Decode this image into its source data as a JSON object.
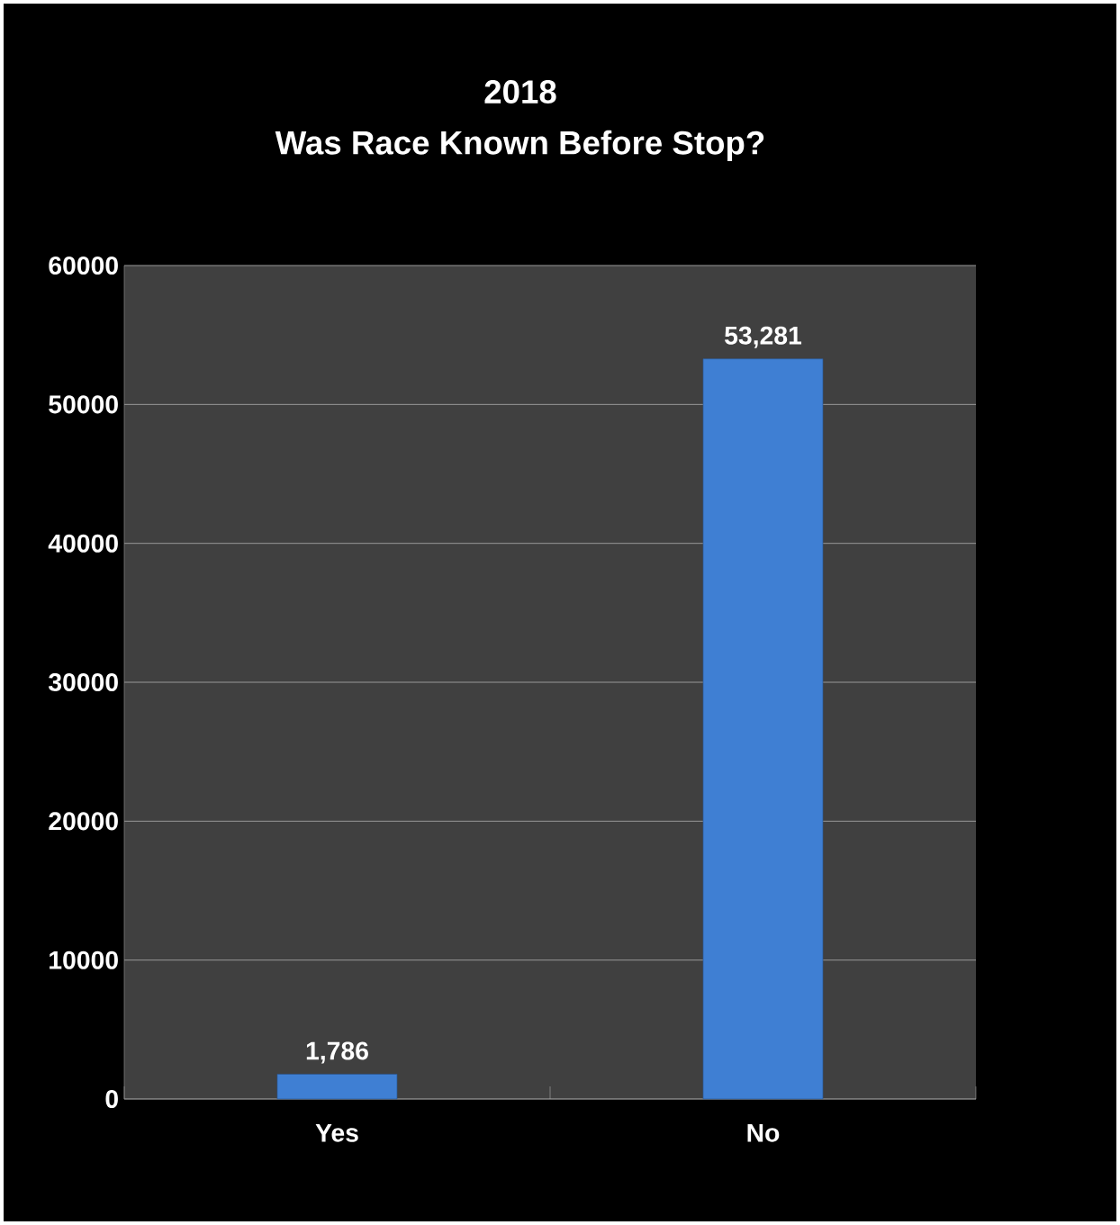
{
  "chart_data": {
    "type": "bar",
    "title": "2018",
    "subtitle": "Was Race Known Before Stop?",
    "categories": [
      "Yes",
      "No"
    ],
    "values": [
      1786,
      53281
    ],
    "value_labels": [
      "1,786",
      "53,281"
    ],
    "color": "#3f7fd3",
    "ylim": [
      0,
      60000
    ],
    "yticks": [
      0,
      10000,
      20000,
      30000,
      40000,
      50000,
      60000
    ],
    "grid": "y"
  }
}
